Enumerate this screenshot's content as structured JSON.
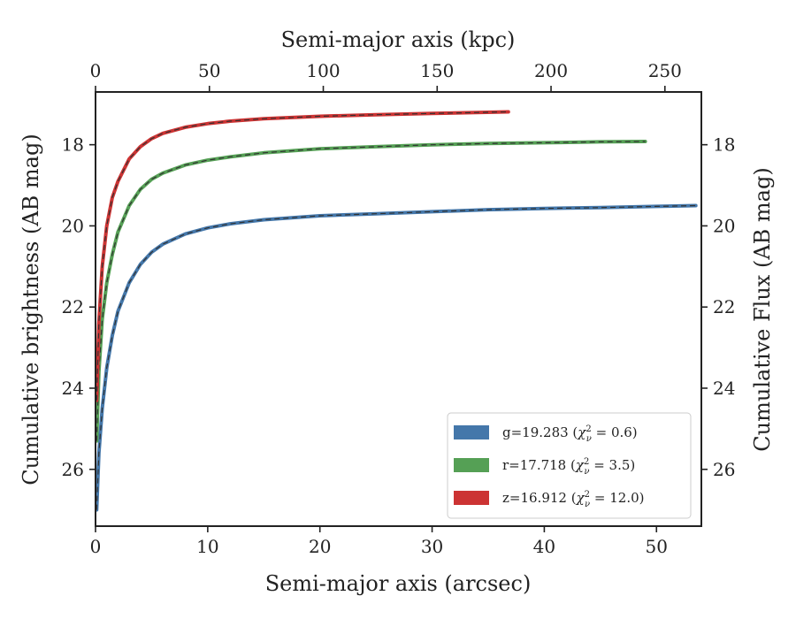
{
  "chart_data": {
    "type": "line",
    "xlabel": "Semi-major axis (arcsec)",
    "x2label": "Semi-major axis (kpc)",
    "ylabel": "Cumulative brightness (AB mag)",
    "y2label": "Cumulative Flux (AB mag)",
    "xlim": [
      0,
      54
    ],
    "x2lim": [
      0,
      266
    ],
    "ylim": [
      27.4,
      16.7
    ],
    "y_inverted": true,
    "xticks": [
      0,
      10,
      20,
      30,
      40,
      50
    ],
    "x2ticks": [
      0,
      50,
      100,
      150,
      200,
      250
    ],
    "yticks": [
      18,
      20,
      22,
      24,
      26
    ],
    "legend_position": "lower-right",
    "grid": false,
    "series": [
      {
        "name": "g",
        "legend_label": "g=19.283 (χ²ᵥ = 0.6)",
        "band_letter": "g",
        "mag_text": "19.283",
        "chi2_text": "0.6",
        "color": "#4477aa",
        "x": [
          0.1,
          0.3,
          0.6,
          1,
          1.5,
          2,
          3,
          4,
          5,
          6,
          8,
          10,
          12,
          15,
          20,
          25,
          30,
          35,
          40,
          45,
          50,
          53.5
        ],
        "y": [
          27.0,
          25.6,
          24.5,
          23.5,
          22.7,
          22.1,
          21.4,
          20.95,
          20.65,
          20.45,
          20.2,
          20.05,
          19.95,
          19.85,
          19.75,
          19.7,
          19.65,
          19.6,
          19.57,
          19.55,
          19.52,
          19.5
        ]
      },
      {
        "name": "r",
        "legend_label": "r=17.718 (χ²ᵥ = 3.5)",
        "band_letter": "r",
        "mag_text": "17.718",
        "chi2_text": "3.5",
        "color": "#55a055",
        "x": [
          0.1,
          0.3,
          0.6,
          1,
          1.5,
          2,
          3,
          4,
          5,
          6,
          8,
          10,
          12,
          15,
          20,
          25,
          30,
          35,
          40,
          45,
          49
        ],
        "y": [
          25.3,
          23.6,
          22.3,
          21.4,
          20.7,
          20.15,
          19.5,
          19.1,
          18.85,
          18.7,
          18.5,
          18.38,
          18.3,
          18.2,
          18.1,
          18.05,
          18.0,
          17.97,
          17.95,
          17.93,
          17.92
        ]
      },
      {
        "name": "z",
        "legend_label": "z=16.912 (χ²ᵥ = 12.0)",
        "band_letter": "z",
        "mag_text": "16.912",
        "chi2_text": "12.0",
        "color": "#cc3333",
        "x": [
          0.1,
          0.3,
          0.6,
          1,
          1.5,
          2,
          3,
          4,
          5,
          6,
          8,
          10,
          12,
          15,
          20,
          25,
          30,
          36.8
        ],
        "y": [
          24.3,
          22.4,
          21.0,
          20.0,
          19.3,
          18.9,
          18.35,
          18.05,
          17.85,
          17.72,
          17.57,
          17.48,
          17.42,
          17.36,
          17.3,
          17.26,
          17.23,
          17.19
        ]
      }
    ]
  }
}
